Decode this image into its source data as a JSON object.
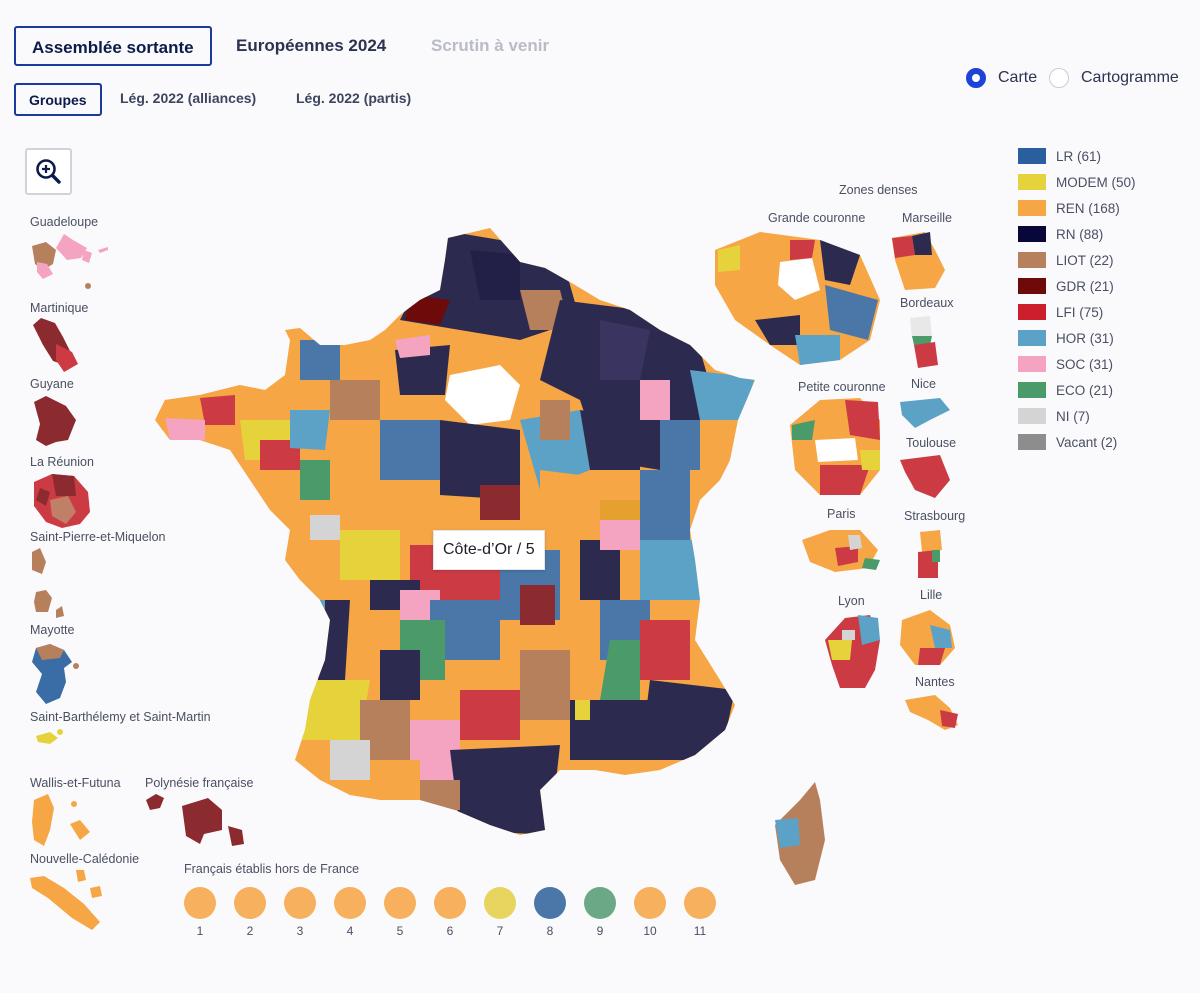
{
  "tabs": [
    {
      "label": "Assemblée sortante",
      "state": "active"
    },
    {
      "label": "Européennes 2024",
      "state": "normal"
    },
    {
      "label": "Scrutin à venir",
      "state": "disabled"
    }
  ],
  "subtabs": [
    {
      "label": "Groupes",
      "state": "active"
    },
    {
      "label": "Lég. 2022 (alliances)",
      "state": "normal"
    },
    {
      "label": "Lég. 2022 (partis)",
      "state": "normal"
    }
  ],
  "view_toggle": {
    "options": [
      {
        "label": "Carte",
        "selected": true
      },
      {
        "label": "Cartogramme",
        "selected": false
      }
    ]
  },
  "zoom_button": {
    "icon": "zoom-in-icon"
  },
  "legend": [
    {
      "label": "LR (61)",
      "color": "#2b5e9e"
    },
    {
      "label": "MODEM (50)",
      "color": "#e6d23a"
    },
    {
      "label": "REN (168)",
      "color": "#f6a644"
    },
    {
      "label": "RN (88)",
      "color": "#07073a"
    },
    {
      "label": "LIOT (22)",
      "color": "#b7805c"
    },
    {
      "label": "GDR (21)",
      "color": "#6e0a0a"
    },
    {
      "label": "LFI (75)",
      "color": "#cc1f2c"
    },
    {
      "label": "HOR (31)",
      "color": "#5ba2c6"
    },
    {
      "label": "SOC (31)",
      "color": "#f4a3c0"
    },
    {
      "label": "ECO (21)",
      "color": "#4b9a6a"
    },
    {
      "label": "NI (7)",
      "color": "#d4d4d4"
    },
    {
      "label": "Vacant (2)",
      "color": "#8d8d8d"
    }
  ],
  "overseas_labels": {
    "guadeloupe": "Guadeloupe",
    "martinique": "Martinique",
    "guyane": "Guyane",
    "reunion": "La Réunion",
    "spm": "Saint-Pierre-et-Miquelon",
    "mayotte": "Mayotte",
    "stbarth": "Saint-Barthélemy et Saint-Martin",
    "wallis": "Wallis-et-Futuna",
    "polynesie": "Polynésie française",
    "caledonie": "Nouvelle-Calédonie"
  },
  "zones": {
    "title": "Zones denses",
    "grande_couronne": "Grande couronne",
    "marseille": "Marseille",
    "bordeaux": "Bordeaux",
    "petite_couronne": "Petite couronne",
    "nice": "Nice",
    "toulouse": "Toulouse",
    "paris": "Paris",
    "strasbourg": "Strasbourg",
    "lyon": "Lyon",
    "lille": "Lille",
    "nantes": "Nantes"
  },
  "tooltip": "Côte-d’Or / 5",
  "hors_france": {
    "title": "Français établis hors de France",
    "circonscriptions": [
      {
        "n": "1",
        "color": "#f6b05e"
      },
      {
        "n": "2",
        "color": "#f6b05e"
      },
      {
        "n": "3",
        "color": "#f6b05e"
      },
      {
        "n": "4",
        "color": "#f6b05e"
      },
      {
        "n": "5",
        "color": "#f6b05e"
      },
      {
        "n": "6",
        "color": "#f6b05e"
      },
      {
        "n": "7",
        "color": "#e8d560"
      },
      {
        "n": "8",
        "color": "#4b77a8"
      },
      {
        "n": "9",
        "color": "#6aa886"
      },
      {
        "n": "10",
        "color": "#f6b05e"
      },
      {
        "n": "11",
        "color": "#f6b05e"
      }
    ]
  }
}
